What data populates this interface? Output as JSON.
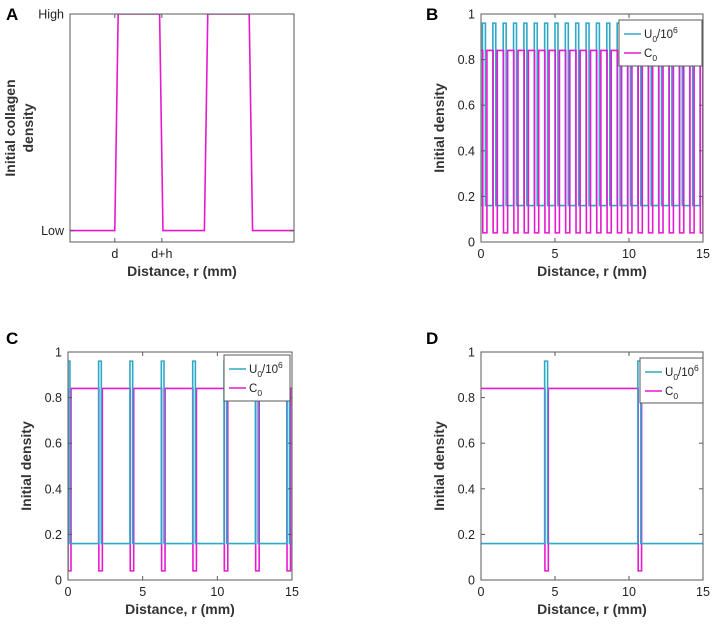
{
  "colors": {
    "u": "#2ea8c8",
    "c": "#e619d1",
    "axis": "#5a5a5a"
  },
  "chart_data": [
    {
      "panel": "A",
      "type": "line",
      "title": "",
      "xlabel": "Distance, r (mm)",
      "ylabel_lines": [
        "Initial collagen",
        "density"
      ],
      "xlim": [
        0,
        10
      ],
      "ylim": [
        0,
        1
      ],
      "xtick_labels": [
        {
          "x": 2.0,
          "label": "d"
        },
        {
          "x": 4.1,
          "label": "d+h"
        }
      ],
      "ytick_labels": [
        {
          "y": 0.05,
          "label": "Low"
        },
        {
          "y": 1.0,
          "label": "High"
        }
      ],
      "series": [
        {
          "name": "collagen",
          "color_key": "c",
          "x": [
            0,
            2.0,
            2.15,
            4.0,
            4.15,
            6.0,
            6.15,
            8.0,
            8.15,
            10
          ],
          "y": [
            0.05,
            0.05,
            1.0,
            1.0,
            0.05,
            0.05,
            1.0,
            1.0,
            0.05,
            0.05
          ]
        }
      ]
    },
    {
      "panel": "B",
      "type": "line",
      "xlabel": "Distance, r (mm)",
      "ylabel": "Initial density",
      "xlim": [
        0,
        15
      ],
      "ylim": [
        0,
        1
      ],
      "xticks": [
        0,
        5,
        10,
        15
      ],
      "yticks": [
        0,
        0.2,
        0.4,
        0.6,
        0.8,
        1
      ],
      "ytick_labels": [
        "0",
        "0.2",
        "0.4",
        "0.6",
        "0.8",
        "1"
      ],
      "pattern": {
        "period": 0.7,
        "offset": 0.1,
        "u_width": 0.2,
        "c_width": 0.3,
        "u_low": 0.16,
        "u_high": 0.96,
        "c_low": 0.04,
        "c_high": 0.84
      },
      "legend": {
        "entries": [
          {
            "key": "u",
            "base": "U",
            "sub": "0",
            "mid": "/10",
            "sup": "6"
          },
          {
            "key": "c",
            "base": "C",
            "sub": "0",
            "mid": "",
            "sup": ""
          }
        ],
        "position": "top-right"
      }
    },
    {
      "panel": "C",
      "type": "line",
      "xlabel": "Distance, r (mm)",
      "ylabel": "Initial density",
      "xlim": [
        0,
        15
      ],
      "ylim": [
        0,
        1
      ],
      "xticks": [
        0,
        5,
        10,
        15
      ],
      "yticks": [
        0,
        0.2,
        0.4,
        0.6,
        0.8,
        1
      ],
      "ytick_labels": [
        "0",
        "0.2",
        "0.4",
        "0.6",
        "0.8",
        "1"
      ],
      "pattern": {
        "period": 2.1,
        "offset": -0.05,
        "u_width": 0.18,
        "c_width": 0.25,
        "u_low": 0.16,
        "u_high": 0.96,
        "c_low": 0.04,
        "c_high": 0.84
      },
      "legend": {
        "entries": [
          {
            "key": "u",
            "base": "U",
            "sub": "0",
            "mid": "/10",
            "sup": "6"
          },
          {
            "key": "c",
            "base": "C",
            "sub": "0",
            "mid": "",
            "sup": ""
          }
        ],
        "position": "top-right"
      }
    },
    {
      "panel": "D",
      "type": "line",
      "xlabel": "Distance, r (mm)",
      "ylabel": "Initial density",
      "xlim": [
        0,
        15
      ],
      "ylim": [
        0,
        1
      ],
      "xticks": [
        0,
        5,
        10,
        15
      ],
      "yticks": [
        0,
        0.2,
        0.4,
        0.6,
        0.8,
        1
      ],
      "ytick_labels": [
        "0",
        "0.2",
        "0.4",
        "0.6",
        "0.8",
        "1"
      ],
      "pattern": {
        "period": 6.3,
        "offset": 4.3,
        "u_width": 0.2,
        "c_width": 0.25,
        "u_low": 0.16,
        "u_high": 0.96,
        "c_low": 0.04,
        "c_high": 0.84
      },
      "legend": {
        "entries": [
          {
            "key": "u",
            "base": "U",
            "sub": "0",
            "mid": "/10",
            "sup": "6"
          },
          {
            "key": "c",
            "base": "C",
            "sub": "0",
            "mid": "",
            "sup": ""
          }
        ],
        "position": "top-right"
      }
    }
  ]
}
